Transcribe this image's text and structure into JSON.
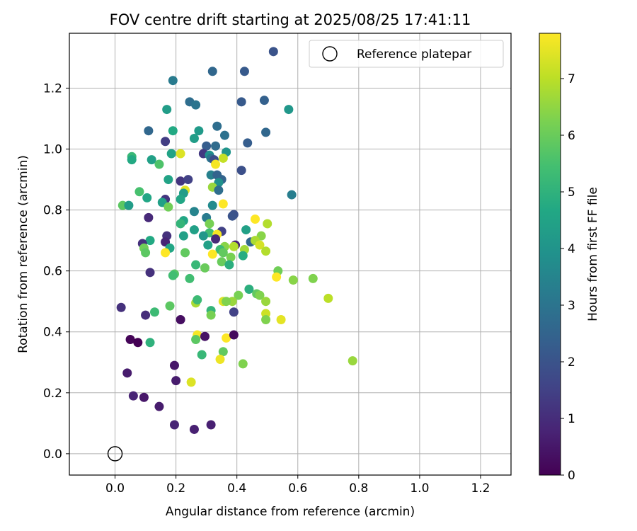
{
  "chart_data": {
    "type": "scatter",
    "title": "FOV centre drift starting at 2025/08/25 17:41:11",
    "xlabel": "Angular distance from reference (arcmin)",
    "ylabel": "Rotation from reference (arcmin)",
    "xlim": [
      -0.15,
      1.3
    ],
    "ylim": [
      -0.07,
      1.38
    ],
    "xticks": [
      "0.0",
      "0.2",
      "0.4",
      "0.6",
      "0.8",
      "1.0",
      "1.2"
    ],
    "yticks": [
      "0.0",
      "0.2",
      "0.4",
      "0.6",
      "0.8",
      "1.0",
      "1.2"
    ],
    "grid": true,
    "legend": {
      "placement": "top-right",
      "entries": [
        "Reference platepar"
      ]
    },
    "reference_point": {
      "x": 0.0,
      "y": 0.0,
      "label": "Reference platepar"
    },
    "colorbar": {
      "label": "Hours from first FF file",
      "range": [
        0,
        7.8
      ],
      "ticks": [
        "0",
        "1",
        "2",
        "3",
        "4",
        "5",
        "6",
        "7"
      ],
      "colormap": "viridis"
    },
    "series": [
      {
        "points": [
          [
            0.52,
            1.32,
            2.0
          ],
          [
            0.32,
            1.255,
            2.6
          ],
          [
            0.425,
            1.255,
            2.2
          ],
          [
            0.19,
            1.225,
            3.2
          ],
          [
            0.49,
            1.16,
            2.4
          ],
          [
            0.415,
            1.155,
            2.2
          ],
          [
            0.245,
            1.155,
            2.8
          ],
          [
            0.265,
            1.145,
            3.0
          ],
          [
            0.17,
            1.13,
            4.3
          ],
          [
            0.57,
            1.13,
            4.1
          ],
          [
            0.335,
            1.075,
            2.8
          ],
          [
            0.11,
            1.06,
            2.6
          ],
          [
            0.19,
            1.06,
            4.7
          ],
          [
            0.275,
            1.06,
            4.2
          ],
          [
            0.495,
            1.055,
            2.6
          ],
          [
            0.36,
            1.045,
            2.9
          ],
          [
            0.26,
            1.035,
            4.3
          ],
          [
            0.165,
            1.025,
            1.4
          ],
          [
            0.435,
            1.02,
            2.3
          ],
          [
            0.3,
            1.01,
            2.3
          ],
          [
            0.33,
            1.01,
            2.7
          ],
          [
            0.365,
            0.99,
            4.0
          ],
          [
            0.185,
            0.985,
            4.5
          ],
          [
            0.215,
            0.985,
            7.4
          ],
          [
            0.29,
            0.985,
            1.3
          ],
          [
            0.31,
            0.98,
            3.9
          ],
          [
            0.055,
            0.975,
            5.2
          ],
          [
            0.055,
            0.965,
            4.7
          ],
          [
            0.315,
            0.97,
            3.0
          ],
          [
            0.12,
            0.965,
            4.4
          ],
          [
            0.355,
            0.97,
            7.1
          ],
          [
            0.325,
            0.965,
            1.8
          ],
          [
            0.145,
            0.95,
            5.6
          ],
          [
            0.33,
            0.95,
            7.7
          ],
          [
            0.415,
            0.93,
            1.9
          ],
          [
            0.315,
            0.915,
            3.4
          ],
          [
            0.335,
            0.915,
            2.5
          ],
          [
            0.175,
            0.9,
            4.5
          ],
          [
            0.215,
            0.895,
            1.2
          ],
          [
            0.24,
            0.9,
            1.5
          ],
          [
            0.35,
            0.9,
            2.5
          ],
          [
            0.34,
            0.89,
            3.9
          ],
          [
            0.32,
            0.875,
            6.6
          ],
          [
            0.34,
            0.865,
            2.8
          ],
          [
            0.23,
            0.865,
            7.5
          ],
          [
            0.08,
            0.86,
            5.5
          ],
          [
            0.58,
            0.85,
            3.3
          ],
          [
            0.225,
            0.855,
            4.3
          ],
          [
            0.105,
            0.84,
            4.6
          ],
          [
            0.165,
            0.835,
            1.2
          ],
          [
            0.215,
            0.835,
            4.6
          ],
          [
            0.155,
            0.825,
            4.4
          ],
          [
            0.355,
            0.82,
            7.8
          ],
          [
            0.025,
            0.815,
            5.8
          ],
          [
            0.045,
            0.815,
            4.3
          ],
          [
            0.32,
            0.815,
            3.7
          ],
          [
            0.175,
            0.81,
            6.1
          ],
          [
            0.26,
            0.795,
            3.5
          ],
          [
            0.39,
            0.785,
            1.9
          ],
          [
            0.385,
            0.78,
            2.0
          ],
          [
            0.11,
            0.775,
            0.9
          ],
          [
            0.3,
            0.775,
            3.2
          ],
          [
            0.46,
            0.77,
            7.8
          ],
          [
            0.225,
            0.765,
            4.6
          ],
          [
            0.215,
            0.755,
            5.1
          ],
          [
            0.31,
            0.755,
            6.2
          ],
          [
            0.5,
            0.755,
            6.9
          ],
          [
            0.43,
            0.735,
            4.4
          ],
          [
            0.26,
            0.735,
            4.4
          ],
          [
            0.35,
            0.73,
            1.5
          ],
          [
            0.31,
            0.725,
            5.4
          ],
          [
            0.335,
            0.72,
            7.7
          ],
          [
            0.17,
            0.715,
            1.1
          ],
          [
            0.29,
            0.715,
            4.1
          ],
          [
            0.225,
            0.715,
            4.4
          ],
          [
            0.48,
            0.715,
            6.4
          ],
          [
            0.115,
            0.7,
            4.7
          ],
          [
            0.33,
            0.705,
            0.9
          ],
          [
            0.165,
            0.695,
            0.8
          ],
          [
            0.445,
            0.695,
            2.6
          ],
          [
            0.46,
            0.7,
            6.8
          ],
          [
            0.09,
            0.69,
            1.1
          ],
          [
            0.305,
            0.685,
            4.4
          ],
          [
            0.36,
            0.68,
            6.4
          ],
          [
            0.395,
            0.685,
            0.7
          ],
          [
            0.095,
            0.675,
            6.1
          ],
          [
            0.18,
            0.675,
            4.6
          ],
          [
            0.475,
            0.685,
            7.3
          ],
          [
            0.39,
            0.68,
            6.9
          ],
          [
            0.345,
            0.67,
            5.3
          ],
          [
            0.425,
            0.67,
            6.7
          ],
          [
            0.1,
            0.66,
            5.8
          ],
          [
            0.165,
            0.66,
            7.8
          ],
          [
            0.23,
            0.66,
            5.9
          ],
          [
            0.32,
            0.655,
            7.8
          ],
          [
            0.355,
            0.66,
            5.9
          ],
          [
            0.495,
            0.665,
            6.9
          ],
          [
            0.42,
            0.65,
            4.8
          ],
          [
            0.38,
            0.645,
            6.2
          ],
          [
            0.35,
            0.63,
            6.0
          ],
          [
            0.375,
            0.62,
            4.9
          ],
          [
            0.265,
            0.62,
            5.2
          ],
          [
            0.295,
            0.61,
            6.0
          ],
          [
            0.115,
            0.595,
            1.1
          ],
          [
            0.195,
            0.59,
            5.7
          ],
          [
            0.19,
            0.585,
            5.4
          ],
          [
            0.535,
            0.6,
            6.1
          ],
          [
            0.245,
            0.575,
            5.4
          ],
          [
            0.53,
            0.58,
            7.8
          ],
          [
            0.585,
            0.57,
            6.4
          ],
          [
            0.65,
            0.575,
            6.3
          ],
          [
            0.44,
            0.54,
            4.9
          ],
          [
            0.465,
            0.525,
            5.9
          ],
          [
            0.475,
            0.52,
            6.3
          ],
          [
            0.405,
            0.52,
            6.2
          ],
          [
            0.7,
            0.51,
            7.0
          ],
          [
            0.355,
            0.5,
            7.4
          ],
          [
            0.385,
            0.5,
            6.6
          ],
          [
            0.365,
            0.5,
            6.3
          ],
          [
            0.495,
            0.5,
            6.6
          ],
          [
            0.265,
            0.495,
            6.8
          ],
          [
            0.27,
            0.505,
            5.3
          ],
          [
            0.18,
            0.485,
            5.8
          ],
          [
            0.02,
            0.48,
            1.1
          ],
          [
            0.315,
            0.47,
            5.1
          ],
          [
            0.39,
            0.465,
            1.5
          ],
          [
            0.13,
            0.465,
            5.3
          ],
          [
            0.495,
            0.46,
            7.2
          ],
          [
            0.1,
            0.455,
            1.0
          ],
          [
            0.315,
            0.455,
            6.2
          ],
          [
            0.495,
            0.44,
            6.3
          ],
          [
            0.545,
            0.44,
            7.5
          ],
          [
            0.215,
            0.44,
            0.3
          ],
          [
            0.27,
            0.39,
            7.7
          ],
          [
            0.295,
            0.385,
            0.4
          ],
          [
            0.365,
            0.38,
            7.8
          ],
          [
            0.39,
            0.39,
            0.2
          ],
          [
            0.265,
            0.375,
            5.8
          ],
          [
            0.05,
            0.375,
            0.1
          ],
          [
            0.075,
            0.365,
            0.0
          ],
          [
            0.115,
            0.365,
            5.0
          ],
          [
            0.355,
            0.335,
            5.9
          ],
          [
            0.285,
            0.325,
            5.2
          ],
          [
            0.42,
            0.295,
            6.3
          ],
          [
            0.78,
            0.305,
            6.6
          ],
          [
            0.345,
            0.31,
            7.6
          ],
          [
            0.195,
            0.29,
            0.5
          ],
          [
            0.04,
            0.265,
            0.6
          ],
          [
            0.2,
            0.24,
            0.6
          ],
          [
            0.25,
            0.235,
            7.4
          ],
          [
            0.06,
            0.19,
            0.8
          ],
          [
            0.095,
            0.185,
            0.5
          ],
          [
            0.145,
            0.155,
            0.6
          ],
          [
            0.195,
            0.095,
            0.8
          ],
          [
            0.26,
            0.08,
            0.7
          ],
          [
            0.315,
            0.095,
            0.7
          ]
        ]
      }
    ]
  }
}
